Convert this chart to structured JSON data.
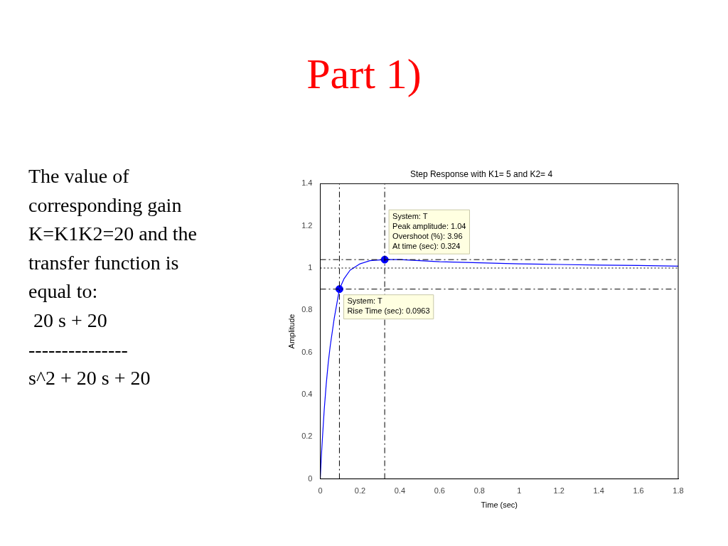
{
  "chart_data": {
    "type": "line",
    "title": "Step Response with K1= 5 and K2= 4",
    "xlabel": "Time (sec)",
    "ylabel": "Amplitude",
    "x": [
      0,
      0.005,
      0.01,
      0.02,
      0.03,
      0.04,
      0.05,
      0.07,
      0.0963,
      0.12,
      0.15,
      0.2,
      0.25,
      0.324,
      0.4,
      0.6,
      0.8,
      1.0,
      1.2,
      1.4,
      1.6,
      1.8
    ],
    "series": [
      {
        "color": "#0000ff",
        "marker": "none",
        "line_style": "solid",
        "values": [
          0,
          0.1,
          0.18,
          0.33,
          0.45,
          0.55,
          0.63,
          0.76,
          0.9,
          0.95,
          0.99,
          1.02,
          1.035,
          1.04,
          1.04,
          1.03,
          1.025,
          1.02,
          1.017,
          1.014,
          1.012,
          1.009
        ]
      },
      {
        "type": "scatter",
        "color": "#0000ff",
        "marker": "circle",
        "x": [
          0.0963,
          0.324
        ],
        "values": [
          0.9,
          1.04
        ]
      }
    ],
    "xlim": [
      0,
      1.8
    ],
    "xticks": [
      0,
      0.2,
      0.4,
      0.6,
      0.8,
      1,
      1.2,
      1.4,
      1.6,
      1.8
    ],
    "ylim": [
      0,
      1.4
    ],
    "yticks": [
      0,
      0.2,
      0.4,
      0.6,
      0.8,
      1,
      1.2,
      1.4
    ],
    "grid": false,
    "legend": false,
    "ref_lines": [
      {
        "axis": "y",
        "value": 1,
        "line_style": "dotted",
        "color": "#000000"
      },
      {
        "axis": "y",
        "value": 1.04,
        "line_style": "dashed",
        "color": "#000000"
      },
      {
        "axis": "y",
        "value": 0.9,
        "line_style": "dashed",
        "color": "#000000"
      },
      {
        "axis": "x",
        "value": 0.0963,
        "line_style": "dashed",
        "color": "#000000"
      },
      {
        "axis": "x",
        "value": 0.324,
        "line_style": "dashed",
        "color": "#000000"
      }
    ],
    "annotations": [
      "Part 1)",
      "The value of\ncorresponding gain\nK=K1K2=20 and the\ntransfer function is\nequal to:\n 20 s + 20\n---------------\ns^2 + 20 s + 20",
      {
        "text": "System: T\nPeak amplitude: 1.04\nOvershoot (%): 3.96\nAt time (sec): 0.324",
        "x": 0.324,
        "y": 1.04
      },
      {
        "text": "System: T\nRise Time (sec): 0.0963",
        "x": 0.0963,
        "y": 0.9
      }
    ]
  }
}
